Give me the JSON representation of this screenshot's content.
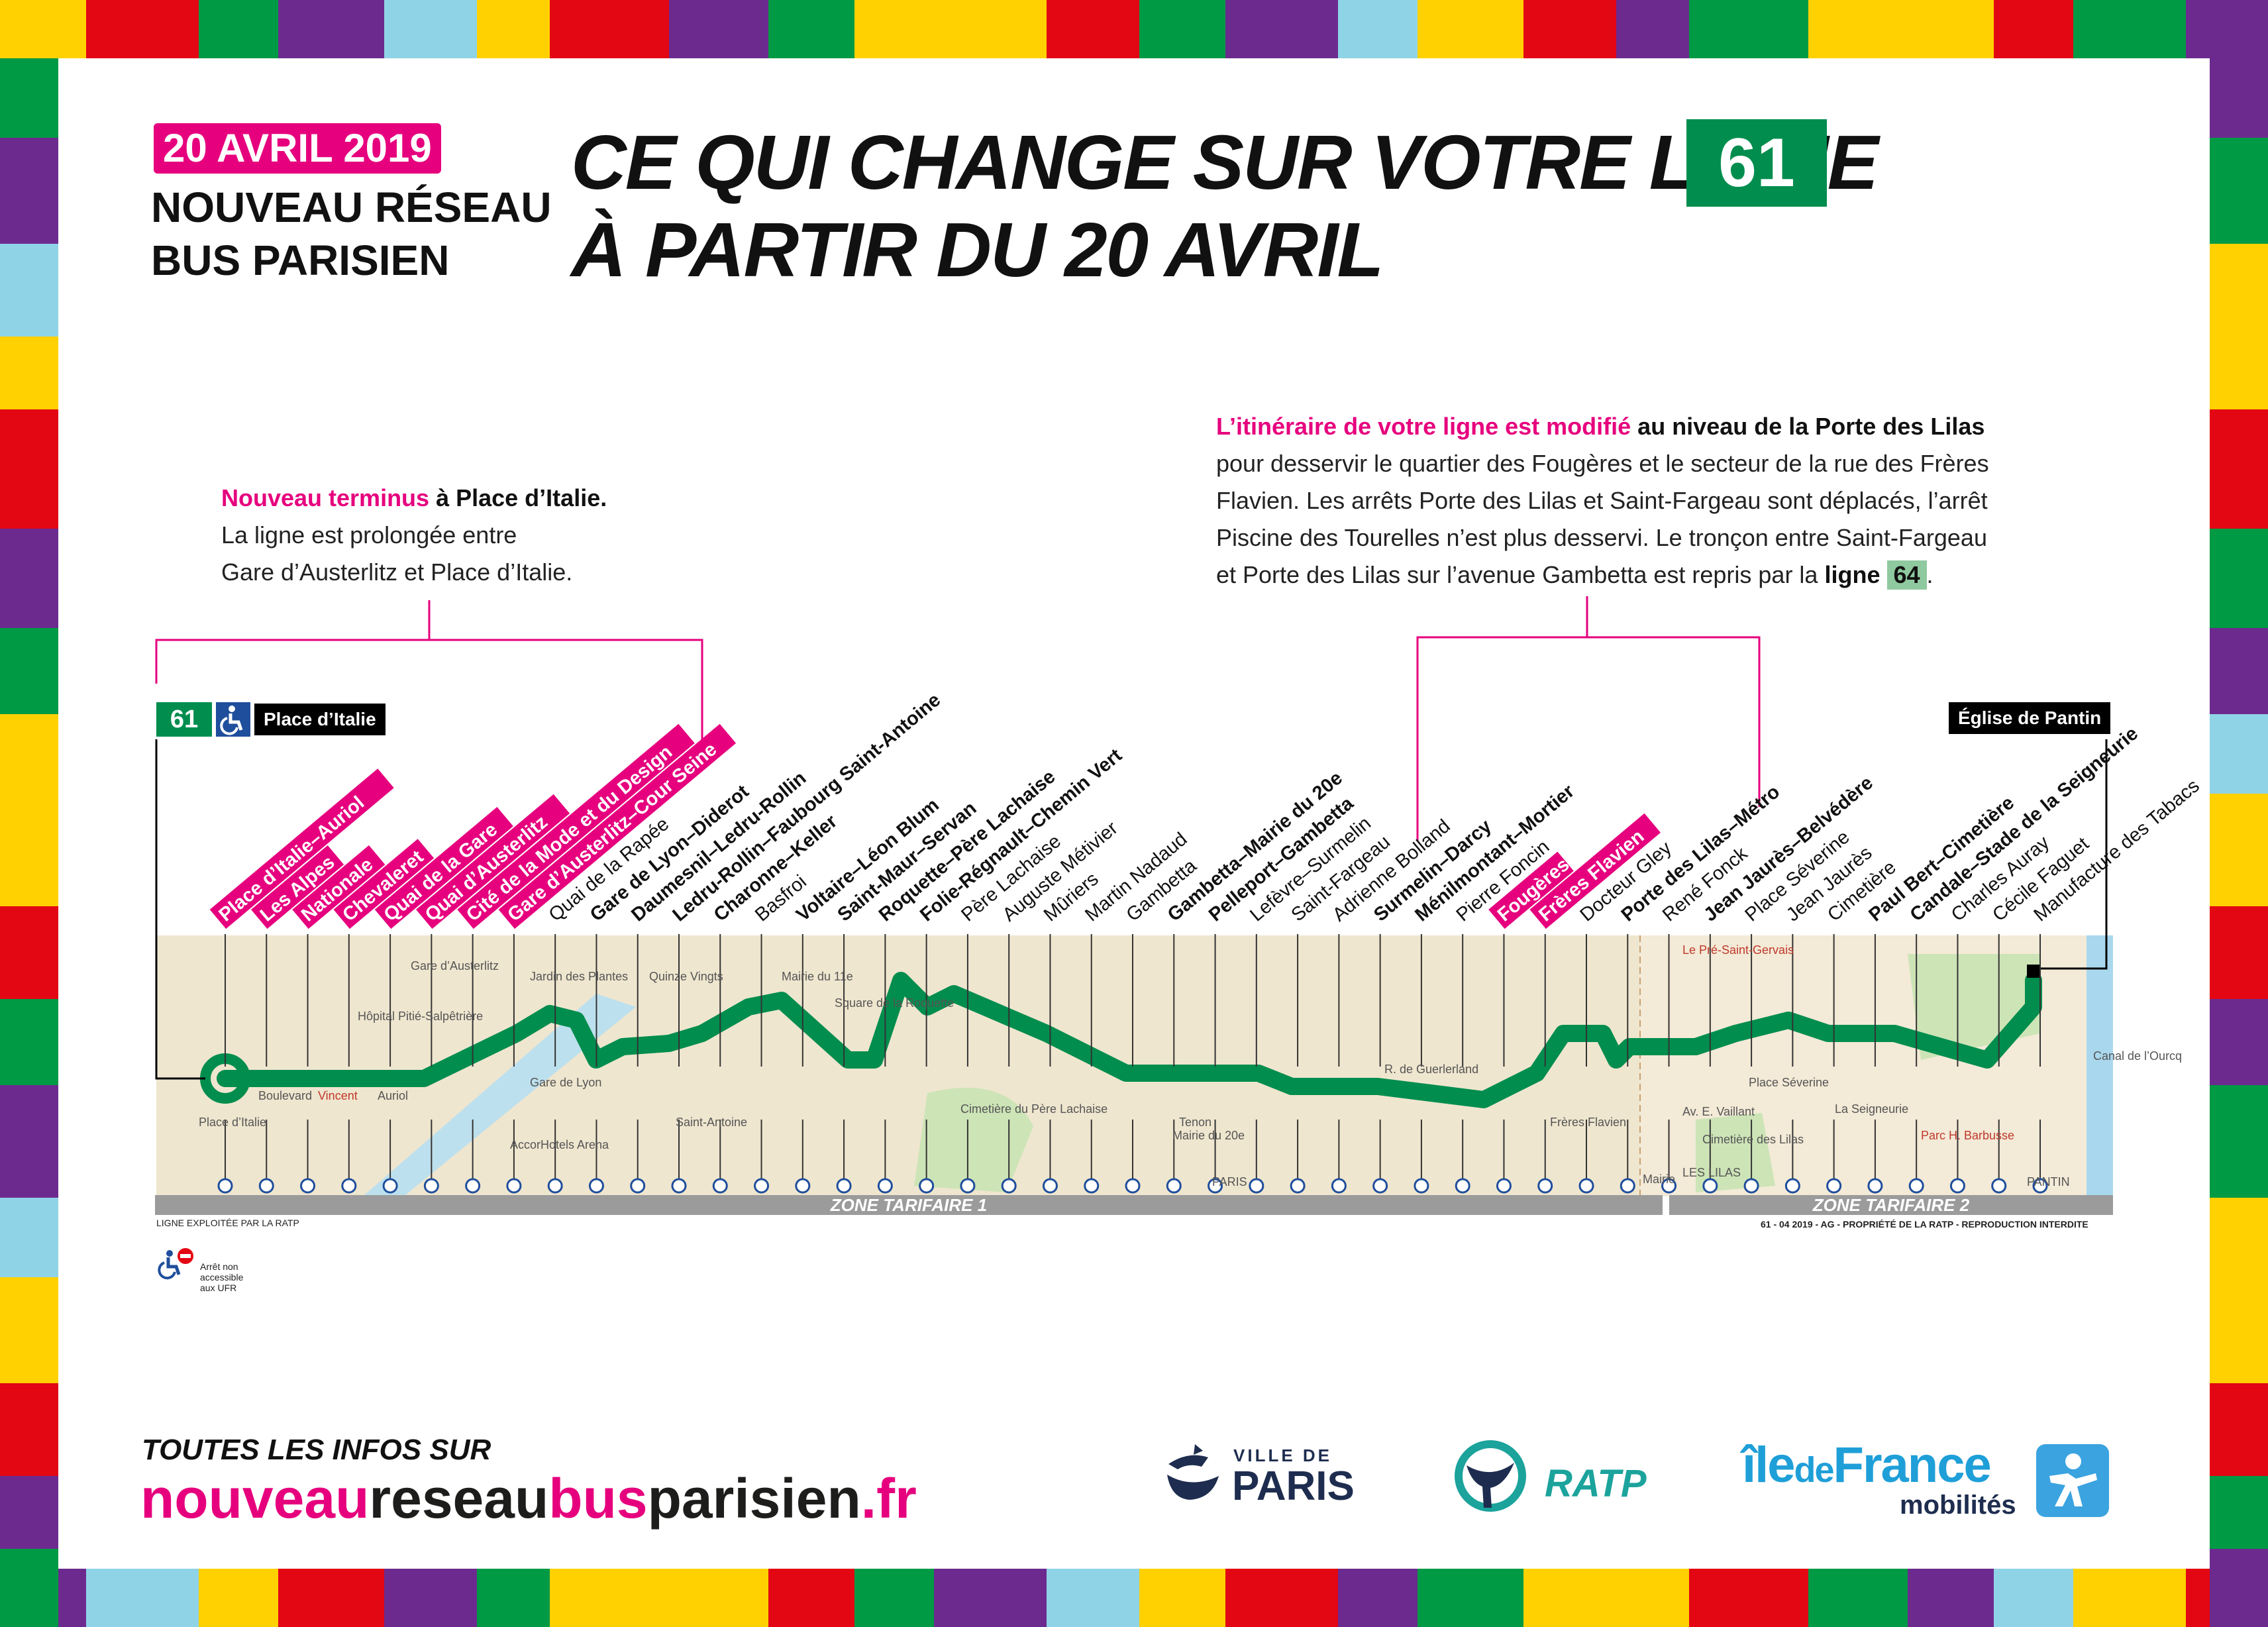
{
  "header": {
    "date_badge": "20 AVRIL 2019",
    "subtitle_line1": "NOUVEAU RÉSEAU",
    "subtitle_line2": "BUS PARISIEN",
    "headline_line1": "CE QUI CHANGE SUR VOTRE LIGNE",
    "headline_line2": "À PARTIR DU 20 AVRIL",
    "line_number": "61"
  },
  "note_left": {
    "highlight": "Nouveau terminus",
    "rest_title": " à Place d’Italie.",
    "line2": "La ligne est prolongée entre",
    "line3": "Gare d’Austerlitz et Place d’Italie."
  },
  "note_right": {
    "highlight": "L’itinéraire de votre ligne est modifié",
    "rest_title": " au niveau de la Porte des Lilas",
    "line2": "pour desservir le quartier des Fougères et le secteur de la rue des Frères",
    "line3": "Flavien. Les arrêts Porte des Lilas et Saint-Fargeau sont déplacés, l’arrêt",
    "line4": "Piscine des Tourelles n’est plus desservi. Le tronçon entre Saint-Fargeau",
    "line5_prefix": "et Porte des Lilas sur l’avenue Gambetta est repris par la ",
    "line5_bold": "ligne",
    "line5_badge": "64",
    "line5_end": "."
  },
  "map": {
    "line_badge": "61",
    "terminus_start": "Place d’Italie",
    "terminus_end": "Église de Pantin",
    "zone1": "ZONE TARIFAIRE 1",
    "zone2": "ZONE TARIFAIRE 2",
    "operator_note": "LIGNE EXPLOITÉE PAR LA RATP",
    "copyright": "61 - 04 2019 - AG - PROPRIÉTÉ DE LA RATP - REPRODUCTION INTERDITE",
    "legend_text": "Arrêt non accessible aux UFR",
    "colors": {
      "line": "#008d4e",
      "new_stop": "#e6007e",
      "map_bg": "#efe6cf"
    },
    "stops": [
      {
        "name": "Place d’Italie–Auriol",
        "style": "new"
      },
      {
        "name": "Les Alpes",
        "style": "new"
      },
      {
        "name": "Nationale",
        "style": "new"
      },
      {
        "name": "Chevaleret",
        "style": "new"
      },
      {
        "name": "Quai de la Gare",
        "style": "new"
      },
      {
        "name": "Quai d’Austerlitz",
        "style": "new"
      },
      {
        "name": "Cité de la Mode et du Design",
        "style": "new"
      },
      {
        "name": "Gare d’Austerlitz–Cour Seine",
        "style": "new"
      },
      {
        "name": "Quai de la Rapée",
        "style": "normal"
      },
      {
        "name": "Gare de Lyon–Diderot",
        "style": "bold"
      },
      {
        "name": "Daumesnil–Ledru-Rollin",
        "style": "bold"
      },
      {
        "name": "Ledru-Rollin–Faubourg Saint-Antoine",
        "style": "bold"
      },
      {
        "name": "Charonne–Keller",
        "style": "bold"
      },
      {
        "name": "Basfroi",
        "style": "normal"
      },
      {
        "name": "Voltaire–Léon Blum",
        "style": "bold"
      },
      {
        "name": "Saint-Maur–Servan",
        "style": "bold"
      },
      {
        "name": "Roquette–Père Lachaise",
        "style": "bold"
      },
      {
        "name": "Folie-Régnault–Chemin Vert",
        "style": "bold"
      },
      {
        "name": "Père Lachaise",
        "style": "normal"
      },
      {
        "name": "Auguste Métivier",
        "style": "normal"
      },
      {
        "name": "Mûriers",
        "style": "normal"
      },
      {
        "name": "Martin Nadaud",
        "style": "normal"
      },
      {
        "name": "Gambetta",
        "style": "normal"
      },
      {
        "name": "Gambetta–Mairie du 20e",
        "style": "bold"
      },
      {
        "name": "Pelleport–Gambetta",
        "style": "bold"
      },
      {
        "name": "Lefèvre–Surmelin",
        "style": "normal"
      },
      {
        "name": "Saint-Fargeau",
        "style": "normal"
      },
      {
        "name": "Adrienne Bolland",
        "style": "normal"
      },
      {
        "name": "Surmelin–Darcy",
        "style": "bold"
      },
      {
        "name": "Ménilmontant–Mortier",
        "style": "bold"
      },
      {
        "name": "Pierre Foncin",
        "style": "normal"
      },
      {
        "name": "Fougères",
        "style": "new"
      },
      {
        "name": "Frères Flavien",
        "style": "new"
      },
      {
        "name": "Docteur Gley",
        "style": "normal"
      },
      {
        "name": "Porte des Lilas–Métro",
        "style": "bold"
      },
      {
        "name": "René Fonck",
        "style": "normal"
      },
      {
        "name": "Jean Jaurès–Belvédère",
        "style": "bold"
      },
      {
        "name": "Place Séverine",
        "style": "normal"
      },
      {
        "name": "Jean Jaurès",
        "style": "normal"
      },
      {
        "name": "Cimetière",
        "style": "normal"
      },
      {
        "name": "Paul Bert–Cimetière",
        "style": "bold"
      },
      {
        "name": "Candale–Stade de la Seigneurie",
        "style": "bold"
      },
      {
        "name": "Charles Auray",
        "style": "normal"
      },
      {
        "name": "Cécile Faguet",
        "style": "normal"
      },
      {
        "name": "Manufacture des Tabacs",
        "style": "normal"
      }
    ],
    "map_labels": [
      "Place d’Italie",
      "Boulevard",
      "Vincent",
      "Auriol",
      "Gare d’Austerlitz",
      "Gare de Lyon",
      "AccorHotels Arena",
      "Jardin des Plantes",
      "Quinze Vingts",
      "Saint-Antoine",
      "Mairie du 11e",
      "Square de la Roquette",
      "Cimetière du Père Lachaise",
      "Tenon",
      "Mairie du 20e",
      "PARIS",
      "R. de Guerlerland",
      "Frères Flavien",
      "Le Pré-Saint-Gervais",
      "Place Séverine",
      "Av. E. Vaillant",
      "Cimetière des Lilas",
      "LES LILAS",
      "La Seigneurie",
      "Parc H. Barbusse",
      "PANTIN",
      "Canal de l’Ourcq",
      "Hôpital Pitié-Salpêtrière",
      "Mairie"
    ]
  },
  "footer": {
    "info_title": "TOUTES LES INFOS SUR",
    "url_part1": "nouveau",
    "url_part2": "reseau",
    "url_part3": "bus",
    "url_part4": "parisien",
    "url_part5": ".fr",
    "logo_paris_small": "VILLE DE",
    "logo_paris_big": "PARIS",
    "logo_ratp": "RATP",
    "logo_idf_1": "île",
    "logo_idf_2": "de",
    "logo_idf_3": "France",
    "logo_idf_sub": "mobilités"
  }
}
